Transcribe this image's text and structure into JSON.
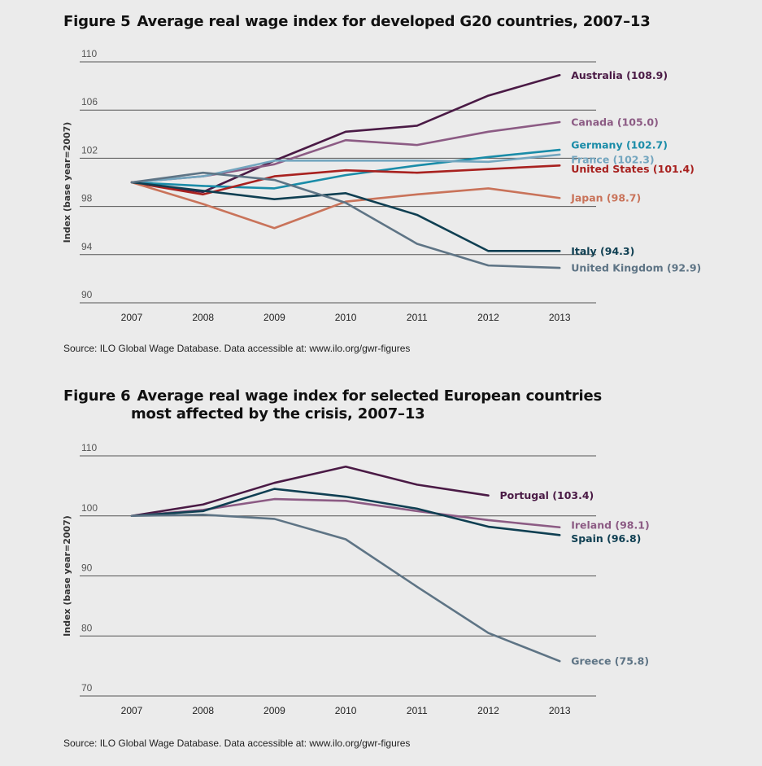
{
  "figure5": {
    "number": "Figure 5",
    "title": "Average real wage index for developed G20 countries, 2007–13",
    "source": "Source: ILO Global Wage Database. Data accessible at: www.ilo.org/gwr-figures"
  },
  "figure6": {
    "number": "Figure 6",
    "title_line1": "Average real wage index for selected European countries",
    "title_line2": "most affected by the crisis, 2007–13",
    "source": "Source: ILO Global Wage Database. Data accessible at: www.ilo.org/gwr-figures"
  },
  "chart_data": [
    {
      "type": "line",
      "title": "Average real wage index for developed G20 countries, 2007–13",
      "xlabel": "",
      "ylabel": "Index (base year=2007)",
      "x": [
        "2007",
        "2008",
        "2009",
        "2010",
        "2011",
        "2012",
        "2013"
      ],
      "yticks": [
        "90",
        "94",
        "98",
        "102",
        "106",
        "110"
      ],
      "ylim": [
        90,
        110
      ],
      "series": [
        {
          "name": "Australia",
          "label": "Australia (108.9)",
          "color": "#4a1a45",
          "values": [
            100,
            99.2,
            101.8,
            104.2,
            104.7,
            107.2,
            108.9
          ]
        },
        {
          "name": "Canada",
          "label": "Canada (105.0)",
          "color": "#8c5b84",
          "values": [
            100,
            100.5,
            101.5,
            103.5,
            103.1,
            104.2,
            105.0
          ]
        },
        {
          "name": "Germany",
          "label": "Germany (102.7)",
          "color": "#1a8ca8",
          "values": [
            100,
            99.7,
            99.5,
            100.6,
            101.4,
            102.1,
            102.7
          ]
        },
        {
          "name": "France",
          "label": "France (102.3)",
          "color": "#74a6bf",
          "values": [
            100,
            100.5,
            101.8,
            101.8,
            101.8,
            101.7,
            102.3
          ]
        },
        {
          "name": "United States",
          "label": "United States (101.4)",
          "color": "#a8211f",
          "values": [
            100,
            99.0,
            100.5,
            101.0,
            100.8,
            101.1,
            101.4
          ]
        },
        {
          "name": "Japan",
          "label": "Japan (98.7)",
          "color": "#c9735a",
          "values": [
            100,
            98.2,
            96.2,
            98.4,
            99.0,
            99.5,
            98.7
          ]
        },
        {
          "name": "Italy",
          "label": "Italy (94.3)",
          "color": "#0f3f52",
          "values": [
            100,
            99.3,
            98.6,
            99.1,
            97.3,
            94.3,
            94.3
          ]
        },
        {
          "name": "United Kingdom",
          "label": "United Kingdom (92.9)",
          "color": "#5e7485",
          "values": [
            100,
            100.8,
            100.2,
            98.3,
            94.9,
            93.1,
            92.9
          ]
        }
      ]
    },
    {
      "type": "line",
      "title": "Average real wage index for selected European countries most affected by the crisis, 2007–13",
      "xlabel": "",
      "ylabel": "Index (base year=2007)",
      "x": [
        "2007",
        "2008",
        "2009",
        "2010",
        "2011",
        "2012",
        "2013"
      ],
      "yticks": [
        "70",
        "80",
        "90",
        "100",
        "110"
      ],
      "ylim": [
        70,
        110
      ],
      "series": [
        {
          "name": "Portugal",
          "label": "Portugal (103.4)",
          "color": "#4a1a45",
          "values": [
            100,
            101.9,
            105.5,
            108.2,
            105.2,
            103.4,
            null
          ]
        },
        {
          "name": "Ireland",
          "label": "Ireland (98.1)",
          "color": "#8c5b84",
          "values": [
            100,
            101.0,
            102.8,
            102.5,
            100.8,
            99.3,
            98.1
          ]
        },
        {
          "name": "Spain",
          "label": "Spain (96.8)",
          "color": "#0f3f52",
          "values": [
            100,
            100.8,
            104.5,
            103.2,
            101.2,
            98.2,
            96.8
          ]
        },
        {
          "name": "Greece",
          "label": "Greece (75.8)",
          "color": "#5e7485",
          "values": [
            100,
            100.2,
            99.5,
            96.1,
            88.2,
            80.5,
            75.8
          ]
        }
      ]
    }
  ]
}
